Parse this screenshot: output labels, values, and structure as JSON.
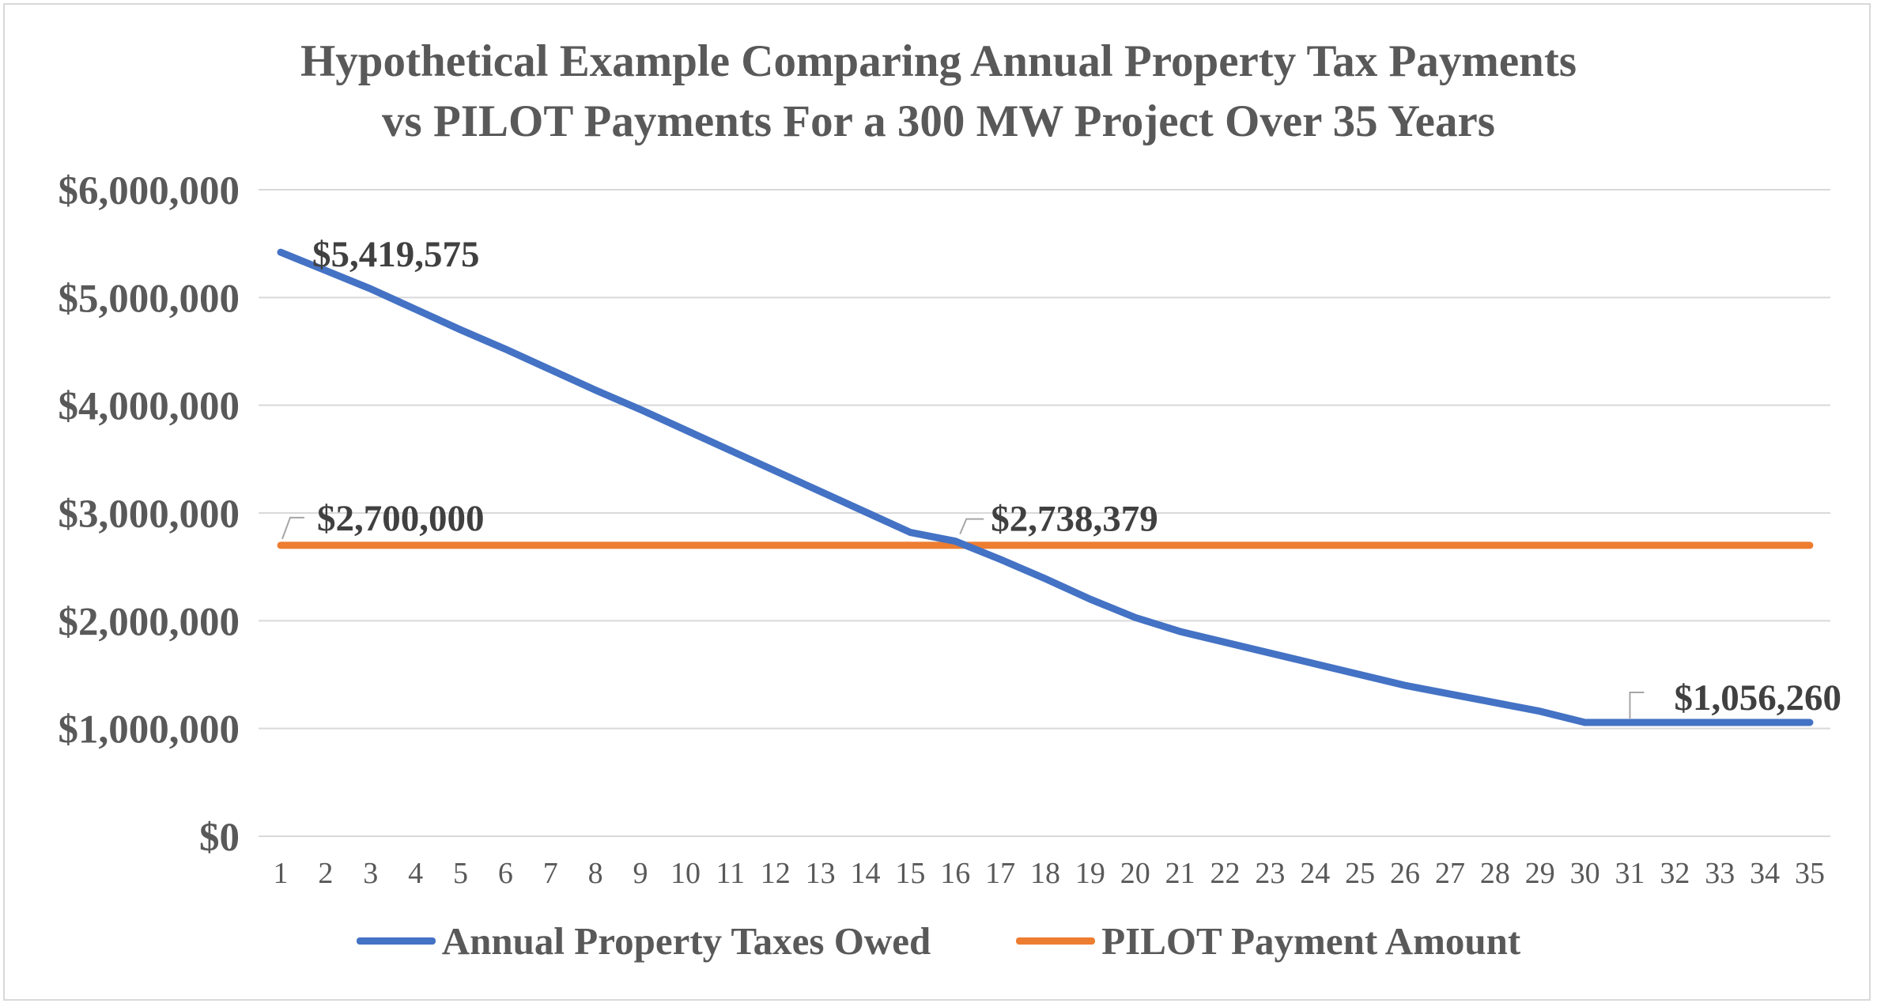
{
  "chart_data": {
    "type": "line",
    "title_lines": [
      "Hypothetical Example Comparing Annual Property Tax Payments",
      "vs PILOT Payments For a 300 MW Project Over 35 Years"
    ],
    "xlabel": "",
    "ylabel": "",
    "x": [
      1,
      2,
      3,
      4,
      5,
      6,
      7,
      8,
      9,
      10,
      11,
      12,
      13,
      14,
      15,
      16,
      17,
      18,
      19,
      20,
      21,
      22,
      23,
      24,
      25,
      26,
      27,
      28,
      29,
      30,
      31,
      32,
      33,
      34,
      35
    ],
    "ylim": [
      0,
      6000000
    ],
    "yticks": [
      0,
      1000000,
      2000000,
      3000000,
      4000000,
      5000000,
      6000000
    ],
    "ytick_labels": [
      "$0",
      "$1,000,000",
      "$2,000,000",
      "$3,000,000",
      "$4,000,000",
      "$5,000,000",
      "$6,000,000"
    ],
    "grid": true,
    "legend_position": "bottom",
    "series": [
      {
        "name": "Annual Property Taxes Owed",
        "color": "#4472c4",
        "values": [
          5419575,
          5250000,
          5080000,
          4890000,
          4700000,
          4520000,
          4330000,
          4140000,
          3960000,
          3770000,
          3580000,
          3390000,
          3200000,
          3010000,
          2820000,
          2738379,
          2570000,
          2390000,
          2200000,
          2030000,
          1900000,
          1800000,
          1700000,
          1600000,
          1500000,
          1400000,
          1320000,
          1240000,
          1160000,
          1056260,
          1056260,
          1056260,
          1056260,
          1056260,
          1056260
        ]
      },
      {
        "name": "PILOT Payment Amount",
        "color": "#ed7d31",
        "values": [
          2700000,
          2700000,
          2700000,
          2700000,
          2700000,
          2700000,
          2700000,
          2700000,
          2700000,
          2700000,
          2700000,
          2700000,
          2700000,
          2700000,
          2700000,
          2700000,
          2700000,
          2700000,
          2700000,
          2700000,
          2700000,
          2700000,
          2700000,
          2700000,
          2700000,
          2700000,
          2700000,
          2700000,
          2700000,
          2700000,
          2700000,
          2700000,
          2700000,
          2700000,
          2700000
        ]
      }
    ],
    "annotations": [
      {
        "text": "$5,419,575",
        "x": 1,
        "y": 5419575,
        "callout": false
      },
      {
        "text": "$2,700,000",
        "x": 1,
        "y": 2700000,
        "callout": true
      },
      {
        "text": "$2,738,379",
        "x": 16,
        "y": 2738379,
        "callout": true
      },
      {
        "text": "$1,056,260",
        "x": 31,
        "y": 1056260,
        "callout": true
      }
    ]
  }
}
